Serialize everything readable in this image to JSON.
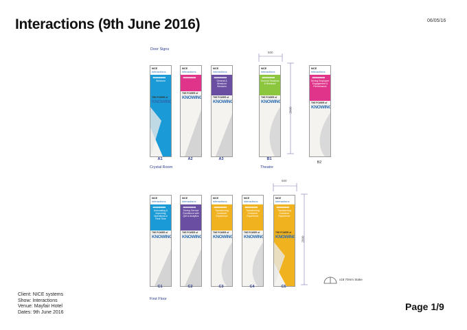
{
  "header": {
    "title": "Interactions  (9th June 2016)",
    "date": "06/05/16"
  },
  "sections": {
    "door_signs": "Door Signs",
    "crystal_room": "Crystal Room",
    "theatre": "Theatre",
    "first_floor": "First Floor"
  },
  "brand": {
    "line1": "NICE",
    "line2": "interactions",
    "logo_top": "THE POWER of",
    "logo_bottom": "KNOWING"
  },
  "banners": [
    {
      "id": "A1",
      "text": "Welcome",
      "color": "#1a9ad6",
      "art": "fill"
    },
    {
      "id": "A2",
      "text": "",
      "color": "#e0338a",
      "art": "wedge"
    },
    {
      "id": "A3",
      "text": "General & Breakout Sessions",
      "color": "#6a4ea2",
      "art": "wedge"
    },
    {
      "id": "B1",
      "text": "General Sessions & Breakout",
      "color": "#8cc63f",
      "art": "curve"
    },
    {
      "id": "B2",
      "text": "Driving Employee Engagement & Performance",
      "color": "#e0338a",
      "art": "curve"
    },
    {
      "id": "C1",
      "text": "Automating & Improving Operations in Real Time",
      "color": "#1a9ad6",
      "art": "wedge"
    },
    {
      "id": "C2",
      "text": "Driving Service Excellence with QM & Analytics",
      "color": "#6a4ea2",
      "art": "wedge"
    },
    {
      "id": "C3",
      "text": "Transforming Customer Experience",
      "color": "#f1b21f",
      "art": "curve"
    },
    {
      "id": "C4",
      "text": "Transforming Customer Experience",
      "color": "#f1b21f",
      "art": "curve"
    },
    {
      "id": "C5",
      "text": "Transforming Customer Experience",
      "color": "#f1b21f",
      "art": "fill"
    }
  ],
  "dimensions": {
    "width": "500",
    "height": "2000"
  },
  "feet_note": "x18 70mm Stake",
  "footer": {
    "client": "Client: NICE systems",
    "show": "Show: Interactions",
    "venue": "Venue: Mayfair Hotel",
    "dates": "Dates: 9th June 2016",
    "page": "Page 1/9"
  }
}
